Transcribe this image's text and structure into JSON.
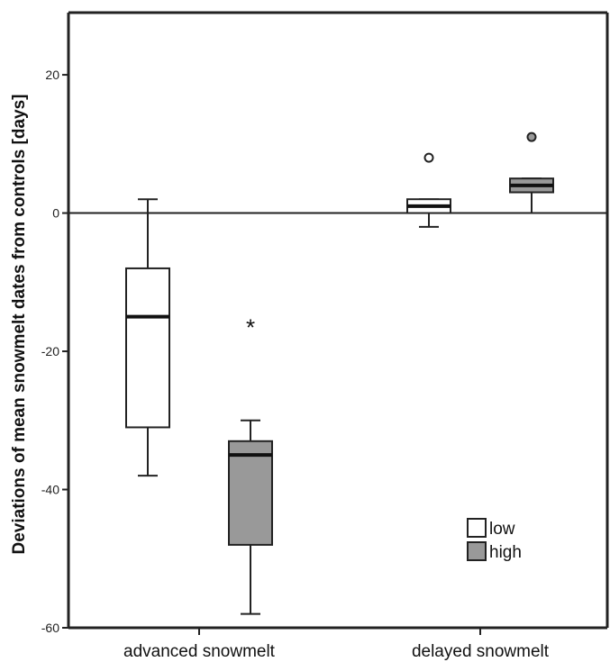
{
  "chart_data": {
    "type": "box",
    "ylabel": "Deviations of mean snowmelt dates from controls [days]",
    "xlabel": "",
    "ylim": [
      -60,
      29
    ],
    "yticks": [
      20,
      0,
      -20,
      -40,
      -60
    ],
    "categories": [
      "advanced snowmelt",
      "delayed snowmelt"
    ],
    "reference_line": 0,
    "legend": {
      "placement": "bottom-right",
      "entries": [
        {
          "name": "low",
          "color": "#ffffff"
        },
        {
          "name": "high",
          "color": "#999999"
        }
      ]
    },
    "series": [
      {
        "name": "low",
        "color": "#ffffff",
        "boxes": [
          {
            "category": "advanced snowmelt",
            "whisker_low": -38,
            "q1": -31,
            "median": -15,
            "q3": -8,
            "whisker_high": 2,
            "outliers": [],
            "extremes": []
          },
          {
            "category": "delayed snowmelt",
            "whisker_low": -2,
            "q1": 0,
            "median": 1,
            "q3": 2,
            "whisker_high": 2,
            "outliers": [
              8
            ],
            "extremes": []
          }
        ]
      },
      {
        "name": "high",
        "color": "#999999",
        "boxes": [
          {
            "category": "advanced snowmelt",
            "whisker_low": -58,
            "q1": -48,
            "median": -35,
            "q3": -33,
            "whisker_high": -30,
            "outliers": [],
            "extremes": [
              -16
            ]
          },
          {
            "category": "delayed snowmelt",
            "whisker_low": 0,
            "q1": 3,
            "median": 4,
            "q3": 5,
            "whisker_high": 5,
            "outliers": [
              11
            ],
            "extremes": []
          }
        ]
      }
    ],
    "annotations": [
      {
        "text": "*",
        "x": "advanced snowmelt",
        "series": "high",
        "y": -16
      }
    ]
  }
}
